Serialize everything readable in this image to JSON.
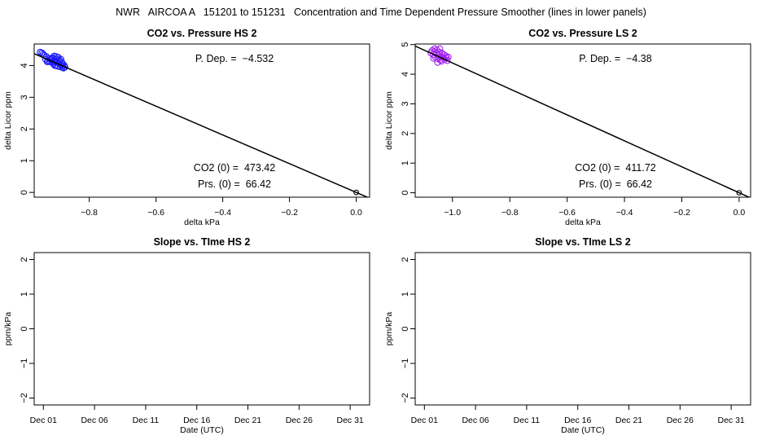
{
  "figure_title": "NWR   AIRCOA A   151201 to 151231   Concentration and Time Dependent Pressure Smoother (lines in lower panels)",
  "chart_data": [
    {
      "type": "scatter",
      "title": "CO2 vs. Pressure HS 2",
      "xlabel": "delta kPa",
      "ylabel": "delta Licor ppm",
      "xlim": [
        -0.965,
        0.04
      ],
      "ylim": [
        -0.15,
        4.68
      ],
      "xticks": [
        -0.8,
        -0.6,
        -0.4,
        -0.2,
        0.0
      ],
      "xtick_labels": [
        "−0.8",
        "−0.6",
        "−0.4",
        "−0.2",
        "0.0"
      ],
      "yticks": [
        0,
        1,
        2,
        3,
        4
      ],
      "yticks_labels": [
        "0",
        "1",
        "2",
        "3",
        "4"
      ],
      "point_color": "#1a1aff",
      "fit_line": {
        "slope": -4.532,
        "intercept": 0,
        "x_from": -0.965,
        "x_to": 0.04
      },
      "origin_point": [
        0,
        0
      ],
      "points": [
        [
          -0.947,
          4.42
        ],
        [
          -0.942,
          4.4
        ],
        [
          -0.938,
          4.36
        ],
        [
          -0.935,
          4.32
        ],
        [
          -0.931,
          4.2
        ],
        [
          -0.928,
          4.28
        ],
        [
          -0.924,
          4.15
        ],
        [
          -0.921,
          4.22
        ],
        [
          -0.918,
          4.12
        ],
        [
          -0.915,
          4.18
        ],
        [
          -0.912,
          4.1
        ],
        [
          -0.91,
          4.25
        ],
        [
          -0.907,
          4.05
        ],
        [
          -0.905,
          4.3
        ],
        [
          -0.903,
          4.15
        ],
        [
          -0.901,
          4.02
        ],
        [
          -0.899,
          4.2
        ],
        [
          -0.897,
          4.1
        ],
        [
          -0.895,
          3.98
        ],
        [
          -0.893,
          4.26
        ],
        [
          -0.891,
          4.08
        ],
        [
          -0.889,
          4.15
        ],
        [
          -0.887,
          3.96
        ],
        [
          -0.885,
          4.02
        ],
        [
          -0.883,
          4.12
        ],
        [
          -0.881,
          3.94
        ],
        [
          -0.879,
          4.05
        ],
        [
          -0.877,
          3.92
        ],
        [
          -0.875,
          4.0
        ],
        [
          -0.873,
          3.95
        ],
        [
          -0.909,
          4.22
        ],
        [
          -0.899,
          4.28
        ],
        [
          -0.891,
          4.18
        ],
        [
          -0.903,
          4.0
        ],
        [
          -0.885,
          4.2
        ],
        [
          -0.895,
          4.12
        ],
        [
          -0.905,
          4.1
        ],
        [
          -0.88,
          4.0
        ],
        [
          -0.916,
          4.2
        ],
        [
          -0.926,
          4.12
        ]
      ],
      "annotations": {
        "pdep": "P. Dep. =  −4.532",
        "co2": "CO2 (0) =  473.42",
        "prs": "Prs. (0) =  66.42"
      }
    },
    {
      "type": "scatter",
      "title": "CO2 vs. Pressure LS 2",
      "xlabel": "delta kPa",
      "ylabel": "delta Licor ppm",
      "xlim": [
        -1.13,
        0.04
      ],
      "ylim": [
        -0.15,
        5.02
      ],
      "xticks": [
        -1.0,
        -0.8,
        -0.6,
        -0.4,
        -0.2,
        0.0
      ],
      "xtick_labels": [
        "−1.0",
        "−0.8",
        "−0.6",
        "−0.4",
        "−0.2",
        "0.0"
      ],
      "yticks": [
        0,
        1,
        2,
        3,
        4,
        5
      ],
      "yticks_labels": [
        "0",
        "1",
        "2",
        "3",
        "4",
        "5"
      ],
      "point_color": "#a020f0",
      "fit_line": {
        "slope": -4.38,
        "intercept": 0,
        "x_from": -1.13,
        "x_to": 0.04
      },
      "origin_point": [
        0,
        0
      ],
      "points": [
        [
          -1.075,
          4.72
        ],
        [
          -1.071,
          4.8
        ],
        [
          -1.067,
          4.66
        ],
        [
          -1.063,
          4.76
        ],
        [
          -1.06,
          4.58
        ],
        [
          -1.057,
          4.7
        ],
        [
          -1.054,
          4.82
        ],
        [
          -1.051,
          4.52
        ],
        [
          -1.048,
          4.64
        ],
        [
          -1.045,
          4.74
        ],
        [
          -1.042,
          4.48
        ],
        [
          -1.039,
          4.6
        ],
        [
          -1.036,
          4.7
        ],
        [
          -1.033,
          4.56
        ],
        [
          -1.03,
          4.66
        ],
        [
          -1.027,
          4.5
        ],
        [
          -1.024,
          4.62
        ],
        [
          -1.021,
          4.55
        ],
        [
          -1.018,
          4.46
        ],
        [
          -1.015,
          4.58
        ],
        [
          -1.052,
          4.4
        ],
        [
          -1.044,
          4.86
        ],
        [
          -1.062,
          4.86
        ],
        [
          -1.038,
          4.44
        ],
        [
          -1.066,
          4.54
        ]
      ],
      "annotations": {
        "pdep": "P. Dep. =  −4.38",
        "co2": "CO2 (0) =  411.72",
        "prs": "Prs. (0) =  66.42"
      }
    },
    {
      "type": "line",
      "title": "Slope vs. TIme HS 2",
      "xlabel": "Date (UTC)",
      "ylabel": "ppm/kPa",
      "ylim": [
        -2.2,
        2.2
      ],
      "yticks": [
        -2,
        -1,
        0,
        1,
        2
      ],
      "yticks_labels": [
        "−2",
        "−1",
        "0",
        "1",
        "2"
      ],
      "xlim_days": [
        0,
        31
      ],
      "xticks_days": [
        0,
        5,
        10,
        15,
        20,
        25,
        30
      ],
      "xtick_labels": [
        "Dec 01",
        "Dec 06",
        "Dec 11",
        "Dec 16",
        "Dec 21",
        "Dec 26",
        "Dec 31"
      ],
      "series": []
    },
    {
      "type": "line",
      "title": "Slope vs. TIme LS 2",
      "xlabel": "Date (UTC)",
      "ylabel": "ppm/kPa",
      "ylim": [
        -2.2,
        2.2
      ],
      "yticks": [
        -2,
        -1,
        0,
        1,
        2
      ],
      "yticks_labels": [
        "−2",
        "−1",
        "0",
        "1",
        "2"
      ],
      "xlim_days": [
        0,
        31
      ],
      "xticks_days": [
        0,
        5,
        10,
        15,
        20,
        25,
        30
      ],
      "xtick_labels": [
        "Dec 01",
        "Dec 06",
        "Dec 11",
        "Dec 16",
        "Dec 21",
        "Dec 26",
        "Dec 31"
      ],
      "series": []
    }
  ]
}
